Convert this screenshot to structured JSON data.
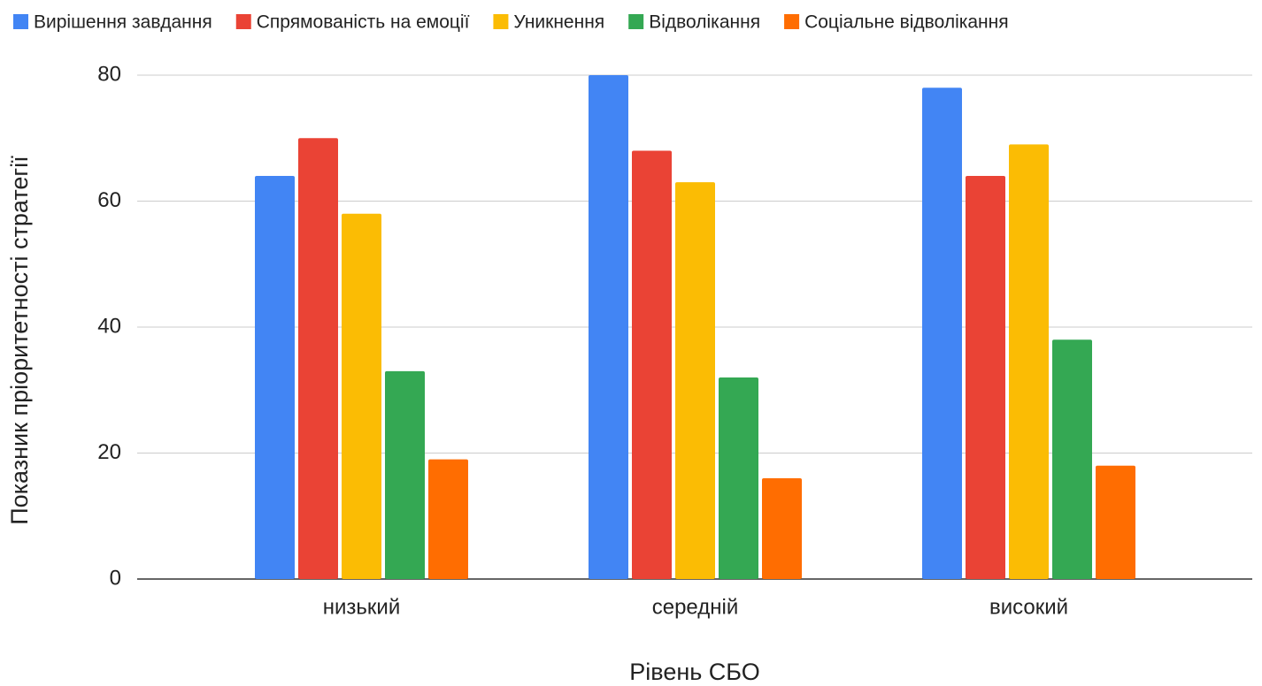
{
  "chart_data": {
    "type": "bar",
    "x_label": "Рівень СБО",
    "y_label": "Показник пріоритетності стратегії",
    "categories": [
      "низький",
      "середній",
      "високий"
    ],
    "series": [
      {
        "name": "Вирішення завдання",
        "color": "#4285f4",
        "values": [
          64,
          80,
          78
        ]
      },
      {
        "name": "Спрямованість на емоції",
        "color": "#ea4335",
        "values": [
          70,
          68,
          64
        ]
      },
      {
        "name": "Уникнення",
        "color": "#fbbc04",
        "values": [
          58,
          63,
          69
        ]
      },
      {
        "name": "Відволікання",
        "color": "#34a853",
        "values": [
          33,
          32,
          38
        ]
      },
      {
        "name": "Соціальне відволікання",
        "color": "#ff6d01",
        "values": [
          19,
          16,
          18
        ]
      }
    ],
    "ylim": [
      0,
      80
    ],
    "yticks": [
      0,
      20,
      40,
      60,
      80
    ],
    "grid": true,
    "legend": "top"
  }
}
